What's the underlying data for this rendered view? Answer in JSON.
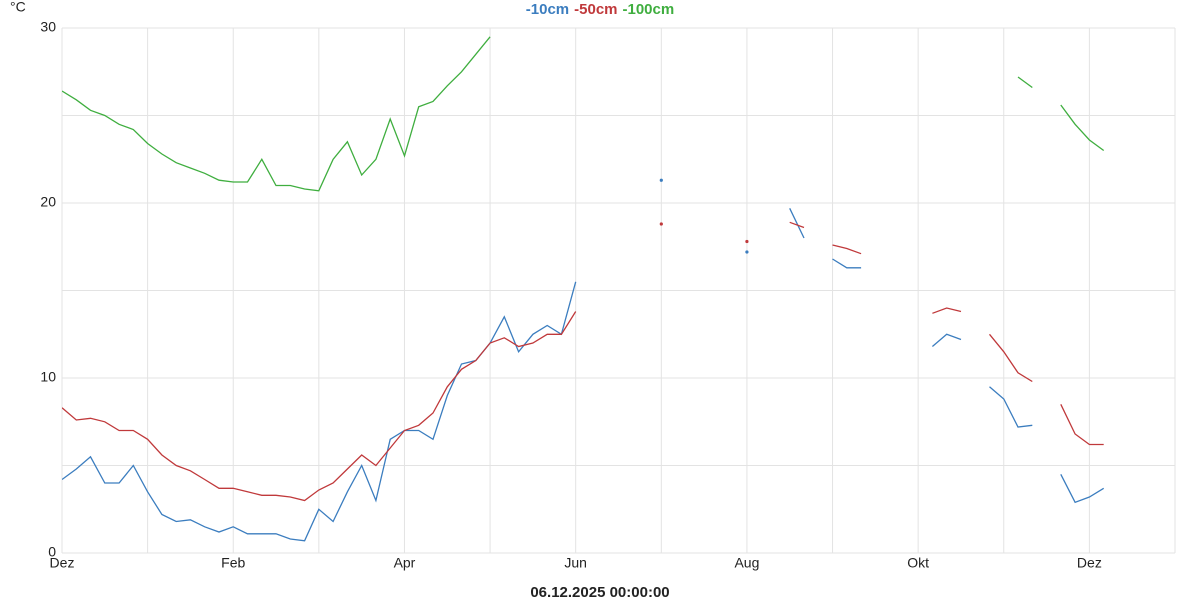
{
  "chart_data": {
    "type": "line",
    "legend": "top",
    "y_label": "°C",
    "x_label": "06.12.2025 00:00:00",
    "categories": [
      "Dez",
      null,
      null,
      null,
      null,
      null,
      null,
      null,
      null,
      null,
      null,
      null,
      "Feb",
      null,
      null,
      null,
      null,
      null,
      null,
      null,
      null,
      null,
      null,
      null,
      "Apr",
      null,
      null,
      null,
      null,
      null,
      null,
      null,
      null,
      null,
      null,
      null,
      "Jun",
      null,
      null,
      null,
      null,
      null,
      null,
      null,
      null,
      null,
      null,
      null,
      "Aug",
      null,
      null,
      null,
      null,
      null,
      null,
      null,
      null,
      null,
      null,
      null,
      "Okt",
      null,
      null,
      null,
      null,
      null,
      null,
      null,
      null,
      null,
      null,
      null,
      "Dez",
      null,
      null,
      null,
      null,
      null,
      null
    ],
    "ylim": [
      0,
      30
    ],
    "yticks": [
      0,
      10,
      20,
      30
    ],
    "grid": true,
    "series": [
      {
        "name": "-10cm",
        "color": "#3b7dbf",
        "values": [
          4.2,
          4.8,
          5.5,
          4.0,
          4.0,
          5.0,
          3.5,
          2.2,
          1.8,
          1.9,
          1.5,
          1.2,
          1.5,
          1.1,
          1.1,
          1.1,
          0.8,
          0.7,
          2.5,
          1.8,
          3.5,
          5.0,
          3.0,
          6.5,
          7.0,
          7.0,
          6.5,
          9.0,
          10.8,
          11.0,
          12.0,
          13.5,
          11.5,
          12.5,
          13.0,
          12.5,
          15.5,
          null,
          null,
          null,
          null,
          null,
          21.3,
          null,
          null,
          null,
          null,
          null,
          17.2,
          null,
          null,
          19.7,
          18.0,
          null,
          16.8,
          16.3,
          16.3,
          null,
          null,
          null,
          null,
          11.8,
          12.5,
          12.2,
          null,
          9.5,
          8.8,
          7.2,
          7.3,
          null,
          4.5,
          2.9,
          3.2,
          3.7,
          null,
          null,
          null,
          null,
          null
        ]
      },
      {
        "name": "-50cm",
        "color": "#c0393b",
        "values": [
          8.3,
          7.6,
          7.7,
          7.5,
          7.0,
          7.0,
          6.5,
          5.6,
          5.0,
          4.7,
          4.2,
          3.7,
          3.7,
          3.5,
          3.3,
          3.3,
          3.2,
          3.0,
          3.6,
          4.0,
          4.8,
          5.6,
          5.0,
          6.0,
          7.0,
          7.3,
          8.0,
          9.5,
          10.5,
          11.0,
          12.0,
          12.3,
          11.8,
          12.0,
          12.5,
          12.5,
          13.8,
          null,
          null,
          null,
          null,
          null,
          18.8,
          null,
          null,
          null,
          null,
          null,
          17.8,
          null,
          null,
          18.9,
          18.6,
          null,
          17.6,
          17.4,
          17.1,
          null,
          null,
          null,
          null,
          13.7,
          14.0,
          13.8,
          null,
          12.5,
          11.5,
          10.3,
          9.8,
          null,
          8.5,
          6.8,
          6.2,
          6.2,
          null,
          null,
          null,
          null,
          null
        ]
      },
      {
        "name": "-100cm",
        "color": "#3fae3f",
        "values": [
          26.4,
          25.9,
          25.3,
          25.0,
          24.5,
          24.2,
          23.4,
          22.8,
          22.3,
          22.0,
          21.7,
          21.3,
          21.2,
          21.2,
          22.5,
          21.0,
          21.0,
          20.8,
          20.7,
          22.5,
          23.5,
          21.6,
          22.5,
          24.8,
          22.7,
          25.5,
          25.8,
          26.7,
          27.5,
          28.5,
          29.5,
          null,
          null,
          null,
          null,
          null,
          null,
          null,
          null,
          null,
          null,
          null,
          null,
          null,
          null,
          null,
          null,
          null,
          null,
          null,
          null,
          null,
          null,
          null,
          null,
          null,
          null,
          null,
          null,
          null,
          null,
          null,
          null,
          null,
          null,
          null,
          null,
          27.2,
          26.6,
          null,
          25.6,
          24.5,
          23.6,
          23.0,
          null,
          null,
          null,
          null,
          null
        ]
      }
    ]
  }
}
